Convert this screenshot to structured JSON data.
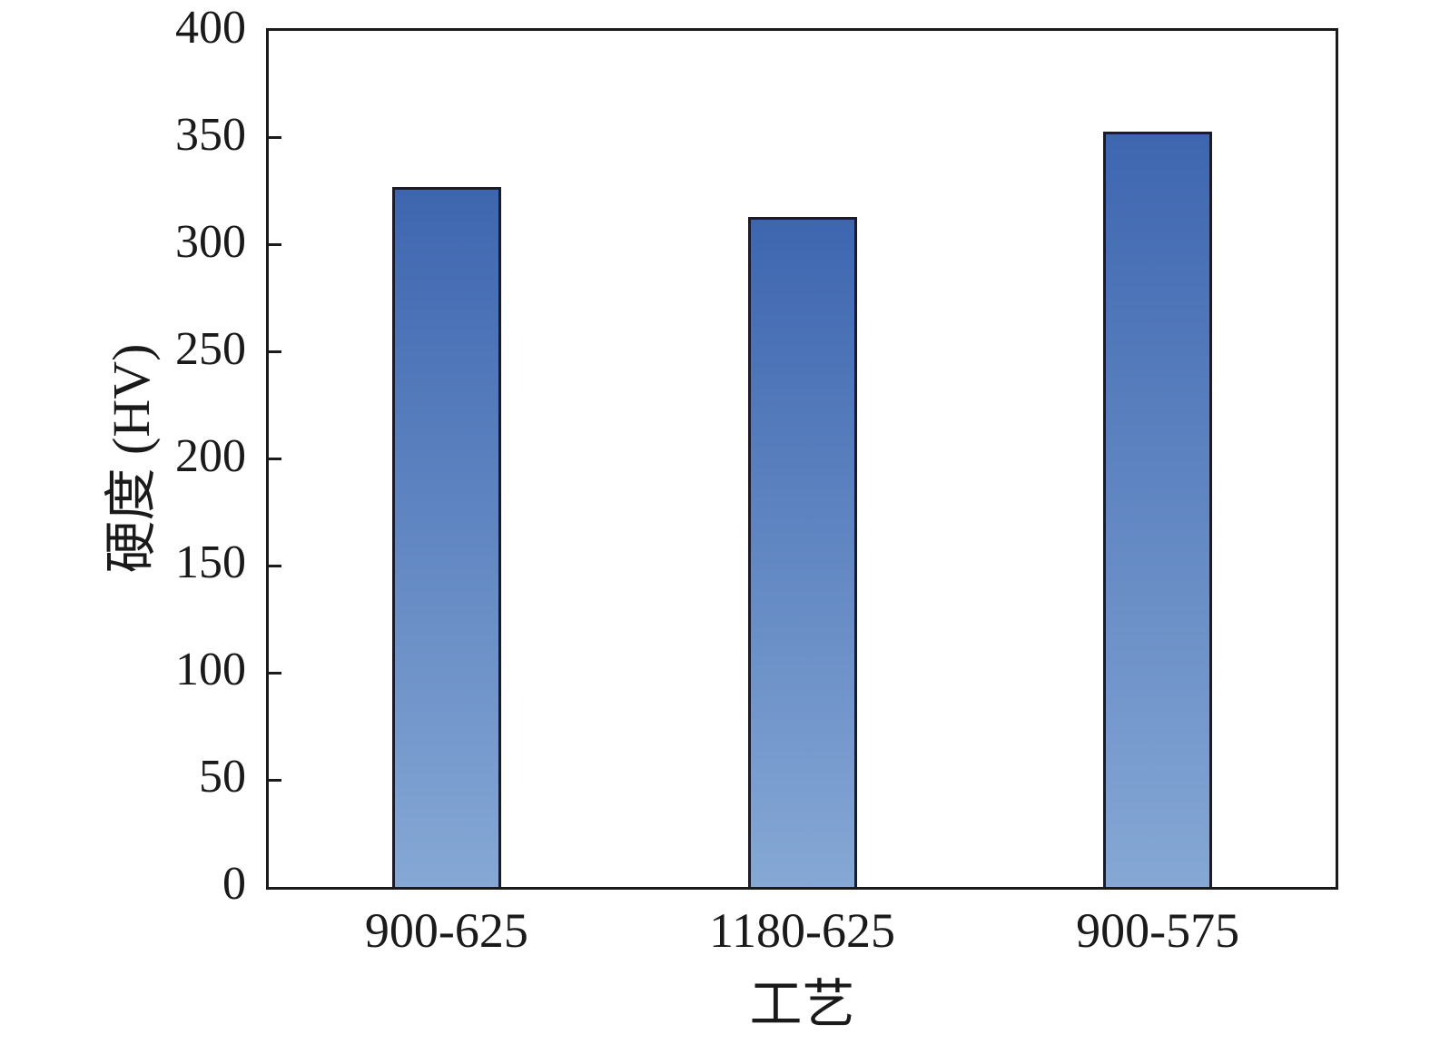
{
  "chart_data": {
    "type": "bar",
    "title": "",
    "categories": [
      "900-625",
      "1180-625",
      "900-575"
    ],
    "values": [
      327,
      313,
      353
    ],
    "xlabel": "工艺",
    "ylabel": "硬度 (HV)",
    "ylim": [
      0,
      400
    ],
    "yticks": [
      0,
      50,
      100,
      150,
      200,
      250,
      300,
      350,
      400
    ],
    "grid": false,
    "legend": null,
    "bar_gradient_top": "#3e66b0",
    "bar_gradient_bottom": "#85a8d5",
    "bar_border_color": "#1b1b29",
    "axis_color": "#1a1a1a",
    "background_color": "#ffffff"
  }
}
